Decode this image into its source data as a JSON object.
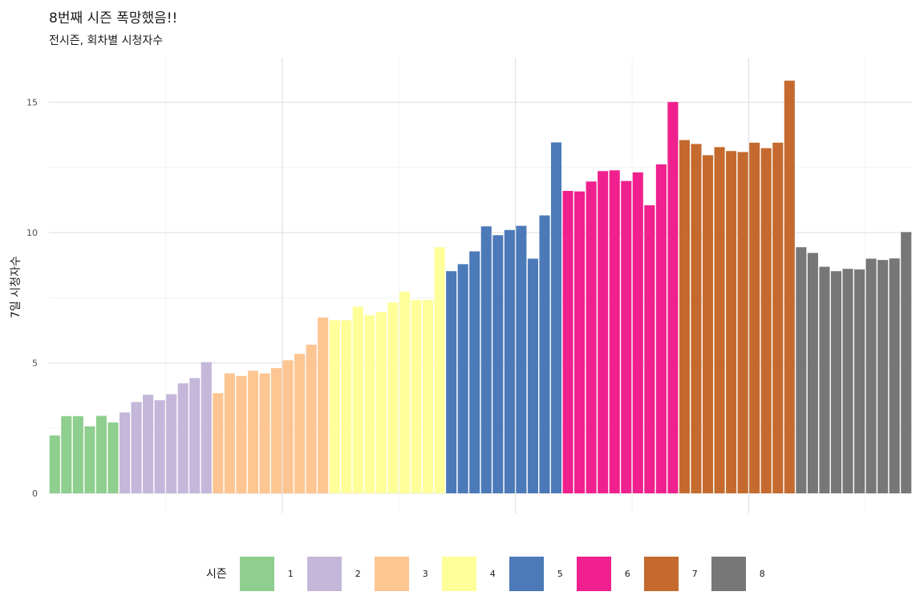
{
  "title": "8번째 시즌 폭망했음!!",
  "subtitle": "전시즌, 회차별 시청자수",
  "chart_data": {
    "type": "bar",
    "ylabel": "7일 시청자수",
    "xlabel": "",
    "ylim": [
      0,
      16.5
    ],
    "yticks": [
      "0",
      "5",
      "10",
      "15"
    ],
    "grid": true,
    "legend_position": "bottom",
    "legend_title": "시즌",
    "series": [
      {
        "name": "1",
        "color": "#8ECE8E",
        "values": [
          2.22,
          2.96,
          2.96,
          2.57,
          2.97,
          2.72
        ]
      },
      {
        "name": "2",
        "color": "#C4B7DA",
        "values": [
          3.1,
          3.5,
          3.78,
          3.57,
          3.8,
          4.22,
          4.42,
          5.03
        ]
      },
      {
        "name": "3",
        "color": "#FDC591",
        "values": [
          3.84,
          4.6,
          4.5,
          4.7,
          4.6,
          4.8,
          5.1,
          5.35,
          5.7,
          6.74
        ]
      },
      {
        "name": "4",
        "color": "#FFFF99",
        "values": [
          6.64,
          6.64,
          7.16,
          6.83,
          6.95,
          7.32,
          7.73,
          7.41,
          7.42,
          9.44
        ]
      },
      {
        "name": "5",
        "color": "#4C7AB9",
        "values": [
          8.52,
          8.79,
          9.28,
          10.24,
          9.9,
          10.1,
          10.26,
          9.0,
          10.66,
          13.46
        ]
      },
      {
        "name": "6",
        "color": "#F0208E",
        "values": [
          11.6,
          11.58,
          11.96,
          12.36,
          12.39,
          11.98,
          12.31,
          11.05,
          12.62,
          15.01
        ]
      },
      {
        "name": "7",
        "color": "#C46A2E",
        "values": [
          13.55,
          13.4,
          12.97,
          13.28,
          13.13,
          13.09,
          13.45,
          13.24,
          13.45,
          15.83
        ]
      },
      {
        "name": "8",
        "color": "#777777",
        "values": [
          9.44,
          9.22,
          8.69,
          8.52,
          8.61,
          8.59,
          9.0,
          8.95,
          9.01,
          10.02
        ]
      }
    ]
  }
}
